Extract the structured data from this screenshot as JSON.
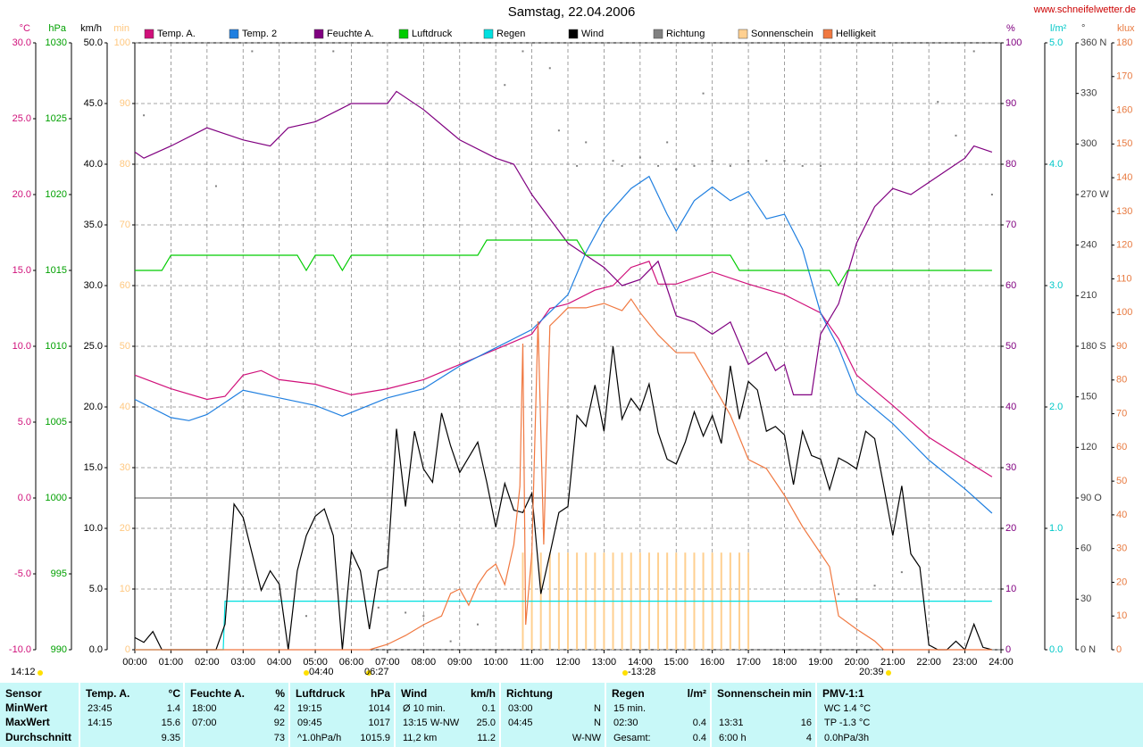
{
  "chart_data": {
    "type": "line",
    "title": "Samstag, 22.04.2006",
    "source": "www.schneifelwetter.de",
    "xlim": [
      0,
      24
    ],
    "xticks": [
      {
        "value": 0,
        "label": "00:00"
      },
      {
        "value": 1,
        "label": "01:00"
      },
      {
        "value": 2,
        "label": "02:00"
      },
      {
        "value": 3,
        "label": "03:00"
      },
      {
        "value": 4,
        "label": "04:00"
      },
      {
        "value": 5,
        "label": "05:00"
      },
      {
        "value": 6,
        "label": "06:00"
      },
      {
        "value": 7,
        "label": "07:00"
      },
      {
        "value": 8,
        "label": "08:00"
      },
      {
        "value": 9,
        "label": "09:00"
      },
      {
        "value": 10,
        "label": "10:00"
      },
      {
        "value": 11,
        "label": "11:00"
      },
      {
        "value": 12,
        "label": "12:00"
      },
      {
        "value": 13,
        "label": "13:00"
      },
      {
        "value": 14,
        "label": "14:00"
      },
      {
        "value": 15,
        "label": "15:00"
      },
      {
        "value": 16,
        "label": "16:00"
      },
      {
        "value": 17,
        "label": "17:00"
      },
      {
        "value": 18,
        "label": "18:00"
      },
      {
        "value": 19,
        "label": "19:00"
      },
      {
        "value": 20,
        "label": "20:00"
      },
      {
        "value": 21,
        "label": "21:00"
      },
      {
        "value": 22,
        "label": "22:00"
      },
      {
        "value": 23,
        "label": "23:00"
      },
      {
        "value": 24,
        "label": "24:00"
      }
    ],
    "ylabel": "°C",
    "ylim": [
      -10,
      30
    ],
    "yticks": [
      {
        "value": -10,
        "label": "-10.0"
      },
      {
        "value": -5,
        "label": "-5.0"
      },
      {
        "value": 0,
        "label": "0.0"
      },
      {
        "value": 5,
        "label": "5.0"
      },
      {
        "value": 10,
        "label": "10.0"
      },
      {
        "value": 15,
        "label": "15.0"
      },
      {
        "value": 20,
        "label": "20.0"
      },
      {
        "value": 25,
        "label": "25.0"
      },
      {
        "value": 30,
        "label": "30.0"
      }
    ],
    "y2label": "hPa",
    "y2lim": [
      990,
      1030
    ],
    "y2ticks": [
      990,
      995,
      1000,
      1005,
      1010,
      1015,
      1020,
      1025,
      1030
    ],
    "y3label": "km/h",
    "y3lim": [
      0,
      50
    ],
    "y3ticks": [
      {
        "value": 0,
        "label": "0.0"
      },
      {
        "value": 5,
        "label": "5.0"
      },
      {
        "value": 10,
        "label": "10.0"
      },
      {
        "value": 15,
        "label": "15.0"
      },
      {
        "value": 20,
        "label": "20.0"
      },
      {
        "value": 25,
        "label": "25.0"
      },
      {
        "value": 30,
        "label": "30.0"
      },
      {
        "value": 35,
        "label": "35.0"
      },
      {
        "value": 40,
        "label": "40.0"
      },
      {
        "value": 45,
        "label": "45.0"
      },
      {
        "value": 50,
        "label": "50.0"
      }
    ],
    "y4label": "min",
    "y4lim": [
      0,
      100
    ],
    "y4ticks": [
      0,
      10,
      20,
      30,
      40,
      50,
      60,
      70,
      80,
      90,
      100
    ],
    "y5label": "%",
    "y5lim": [
      0,
      100
    ],
    "y5ticks": [
      0,
      10,
      20,
      30,
      40,
      50,
      60,
      70,
      80,
      90,
      100
    ],
    "y6label": "l/m²",
    "y6lim": [
      0,
      5
    ],
    "y6ticks": [
      {
        "value": 0,
        "label": "0.0"
      },
      {
        "value": 1,
        "label": "1.0"
      },
      {
        "value": 2,
        "label": "2.0"
      },
      {
        "value": 3,
        "label": "3.0"
      },
      {
        "value": 4,
        "label": "4.0"
      },
      {
        "value": 5,
        "label": "5.0"
      }
    ],
    "y7label": "°",
    "y7lim": [
      0,
      360
    ],
    "y7ticks": [
      {
        "value": 0,
        "label": "0 N"
      },
      30,
      60,
      {
        "value": 90,
        "label": "90 O"
      },
      120,
      150,
      {
        "value": 180,
        "label": "180 S"
      },
      210,
      240,
      {
        "value": 270,
        "label": "270 W"
      },
      300,
      330,
      {
        "value": 360,
        "label": "360 N"
      }
    ],
    "y8label": "klux",
    "y8lim": [
      0,
      180
    ],
    "y8ticks": [
      0,
      10,
      20,
      30,
      40,
      50,
      60,
      70,
      80,
      90,
      100,
      110,
      120,
      130,
      140,
      150,
      160,
      170,
      180
    ],
    "axis_colors": {
      "y": "#d0107a",
      "y2": "#00a000",
      "y3": "#000000",
      "y4": "#ffc880",
      "y5": "#800080",
      "y6": "#00c8c8",
      "y7": "#404040",
      "y8": "#e87a40"
    },
    "grid": true,
    "series": [
      {
        "name": "Temp. A.",
        "color": "#d0107a",
        "type": "line",
        "axis": "y",
        "x": [
          0,
          1,
          2,
          2.5,
          3,
          3.5,
          4,
          5,
          6,
          7,
          8,
          9,
          10,
          11,
          11.5,
          12,
          12.75,
          13.25,
          13.75,
          14.25,
          14.5,
          15,
          16,
          17,
          18,
          19,
          19.5,
          20,
          21,
          22,
          23,
          23.75
        ],
        "values": [
          8.1,
          7.2,
          6.5,
          6.7,
          8.1,
          8.4,
          7.8,
          7.5,
          6.8,
          7.2,
          7.8,
          8.8,
          9.8,
          10.8,
          12.5,
          12.8,
          13.7,
          14.0,
          15.2,
          15.6,
          14.1,
          14.1,
          14.9,
          14.1,
          13.4,
          12.2,
          10.5,
          8.1,
          6.1,
          4.0,
          2.5,
          1.4
        ]
      },
      {
        "name": "Temp. 2",
        "color": "#1f7fe0",
        "type": "line",
        "axis": "y",
        "x": [
          0,
          1,
          1.5,
          2,
          3,
          4,
          5,
          5.75,
          7,
          8,
          9,
          10,
          11,
          12,
          12.5,
          13,
          13.75,
          14.25,
          14.75,
          15,
          15.5,
          16,
          16.5,
          17,
          17.5,
          18,
          18.5,
          19,
          19.5,
          20,
          21,
          22,
          23,
          23.75
        ],
        "values": [
          6.5,
          5.3,
          5.1,
          5.5,
          7.1,
          6.6,
          6.1,
          5.4,
          6.6,
          7.2,
          8.7,
          9.9,
          11.1,
          13.4,
          16.2,
          18.4,
          20.4,
          21.2,
          18.7,
          17.6,
          19.6,
          20.5,
          19.6,
          20.2,
          18.4,
          18.7,
          16.4,
          12.2,
          9.9,
          6.9,
          4.9,
          2.5,
          0.6,
          -1.0
        ]
      },
      {
        "name": "Feuchte A.",
        "color": "#800080",
        "type": "line",
        "axis": "y5",
        "x": [
          0,
          0.25,
          1,
          2,
          3,
          3.75,
          4.25,
          5,
          6,
          7,
          7.25,
          8,
          9,
          10,
          10.5,
          11,
          12,
          12.5,
          13,
          13.5,
          14,
          14.5,
          15,
          15.5,
          16,
          16.5,
          17,
          17.5,
          17.75,
          18,
          18.25,
          18.75,
          19,
          19.5,
          20,
          20.5,
          21,
          21.5,
          22,
          22.5,
          23,
          23.25,
          23.75
        ],
        "values": [
          82,
          81,
          83,
          86,
          84,
          83,
          86,
          87,
          90,
          90,
          92,
          89,
          84,
          81,
          80,
          75,
          67,
          65,
          63,
          60,
          61,
          64,
          55,
          54,
          52,
          54,
          47,
          49,
          46,
          47,
          42,
          42,
          52,
          57,
          67,
          73,
          76,
          75,
          77,
          79,
          81,
          83,
          82
        ]
      },
      {
        "name": "Luftdruck",
        "color": "#00cc00",
        "type": "line",
        "axis": "y2",
        "x": [
          0,
          0.75,
          1,
          4.5,
          4.75,
          5,
          5.5,
          5.75,
          6,
          9.5,
          9.75,
          12.25,
          12.5,
          16.5,
          16.75,
          19.25,
          19.5,
          19.75,
          23.75
        ],
        "values": [
          1015,
          1015,
          1016,
          1016,
          1015,
          1016,
          1016,
          1015,
          1016,
          1016,
          1017,
          1017,
          1016,
          1016,
          1015,
          1015,
          1014,
          1015,
          1015
        ]
      },
      {
        "name": "Regen",
        "color": "#00e0e0",
        "type": "line",
        "axis": "y6",
        "x": [
          0,
          2.45,
          2.5,
          23.75
        ],
        "values": [
          0,
          0,
          0.4,
          0.4
        ]
      },
      {
        "name": "Wind",
        "color": "#000000",
        "type": "line",
        "axis": "y3",
        "x": [
          0,
          0.25,
          0.5,
          0.75,
          2.25,
          2.5,
          2.75,
          3,
          3.5,
          3.75,
          4,
          4.25,
          4.5,
          4.75,
          5,
          5.25,
          5.5,
          5.75,
          6,
          6.25,
          6.5,
          6.75,
          7,
          7.25,
          7.5,
          7.75,
          8,
          8.25,
          8.5,
          8.75,
          9,
          9.5,
          9.75,
          10,
          10.25,
          10.5,
          10.75,
          11,
          11.25,
          11.5,
          11.75,
          12,
          12.25,
          12.5,
          12.75,
          13,
          13.25,
          13.5,
          13.75,
          14,
          14.25,
          14.5,
          14.75,
          15,
          15.25,
          15.5,
          15.75,
          16,
          16.25,
          16.5,
          16.75,
          17,
          17.25,
          17.5,
          17.75,
          18,
          18.25,
          18.5,
          18.75,
          19,
          19.25,
          19.5,
          19.75,
          20,
          20.25,
          20.5,
          20.75,
          21,
          21.25,
          21.5,
          21.75,
          22,
          22.25,
          22.5,
          22.75,
          23,
          23.25,
          23.5,
          23.75
        ],
        "values": [
          1.0,
          0.6,
          1.5,
          0,
          0,
          2.1,
          12.0,
          10.9,
          4.9,
          6.5,
          5.4,
          0,
          6.5,
          9.4,
          11.0,
          11.6,
          9.4,
          0,
          8.1,
          6.5,
          1.7,
          6.5,
          6.8,
          18.2,
          11.8,
          18.0,
          14.9,
          13.8,
          19.5,
          16.8,
          14.6,
          17.1,
          13.8,
          10.1,
          13.7,
          11.5,
          11.3,
          12.9,
          4.6,
          7.9,
          11.3,
          11.8,
          19.3,
          18.4,
          21.8,
          18.0,
          25.0,
          19.0,
          20.7,
          19.7,
          21.9,
          17.9,
          15.7,
          15.3,
          17.1,
          19.6,
          17.6,
          19.3,
          17.0,
          23.4,
          19.0,
          22.1,
          21.4,
          18.0,
          18.4,
          17.7,
          13.6,
          18.0,
          16.0,
          15.7,
          13.2,
          15.8,
          15.4,
          14.9,
          18.0,
          17.4,
          13.5,
          9.4,
          13.5,
          7.9,
          6.8,
          0.4,
          0,
          0,
          0.7,
          0,
          2.1,
          0.2,
          0
        ]
      },
      {
        "name": "Richtung",
        "color": "#808080",
        "type": "scatter",
        "axis": "y7",
        "x": [
          0.25,
          2.25,
          3.25,
          4.75,
          5.5,
          6.75,
          7.5,
          8,
          8.75,
          9.5,
          10.25,
          10.75,
          11.5,
          11.75,
          12.25,
          12.5,
          13.25,
          13.5,
          14,
          14.5,
          14.75,
          15,
          15.5,
          15.75,
          16,
          16.5,
          17,
          17.5,
          18,
          18.5,
          19,
          19.5,
          20,
          20.5,
          21.25,
          22.25,
          22.75,
          23.25,
          23.75
        ],
        "values": [
          317,
          275,
          355,
          20,
          355,
          25,
          22,
          20,
          5,
          15,
          335,
          355,
          345,
          308,
          287,
          301,
          290,
          287,
          292,
          287,
          301,
          285,
          287,
          330,
          290,
          287,
          290,
          290,
          290,
          287,
          287,
          33,
          30,
          38,
          46,
          325,
          305,
          355,
          270
        ]
      },
      {
        "name": "Sonnenschein",
        "color": "#ffd090",
        "type": "bar",
        "axis": "y4",
        "x": [
          10.75,
          11,
          11.25,
          11.5,
          11.75,
          12,
          12.25,
          12.5,
          12.75,
          13,
          13.25,
          13.5,
          13.75,
          14,
          14.25,
          14.5,
          14.75,
          15,
          15.25,
          15.5,
          15.75,
          16,
          16.25,
          16.5,
          16.75,
          17
        ],
        "values": [
          16,
          16,
          16,
          16,
          16,
          16,
          16,
          16,
          16,
          16,
          16,
          16,
          16,
          16,
          16,
          16,
          16,
          16,
          16,
          16,
          16,
          16,
          16,
          16,
          16,
          16
        ]
      },
      {
        "name": "Helligkeit",
        "color": "#f07840",
        "type": "line",
        "axis": "y8",
        "x": [
          0,
          6.5,
          7,
          7.5,
          8,
          8.5,
          8.75,
          9,
          9.25,
          9.5,
          9.75,
          10,
          10.25,
          10.5,
          10.67,
          10.75,
          10.83,
          11,
          11.17,
          11.33,
          11.5,
          11.75,
          12,
          12.5,
          13,
          13.5,
          13.75,
          14,
          14.5,
          15,
          15.5,
          16,
          16.5,
          17,
          17.5,
          18,
          18.5,
          19,
          19.25,
          19.5,
          20,
          20.5,
          20.75,
          23.75
        ],
        "values": [
          0,
          0,
          1.6,
          4.2,
          7.4,
          10,
          16.7,
          18,
          13.2,
          19.3,
          23.3,
          25.4,
          19.3,
          31.2,
          48.4,
          90.8,
          7.4,
          28.6,
          97.4,
          31.2,
          96.1,
          98.7,
          101.4,
          101.4,
          102.7,
          100.6,
          104,
          100,
          93.4,
          88.1,
          88.1,
          78.9,
          69.6,
          56.4,
          53.7,
          45.8,
          36.5,
          28.6,
          24.6,
          10,
          6.1,
          2.6,
          0,
          0
        ]
      }
    ],
    "annotations": [
      "14:12",
      "04:40",
      "06:27",
      "-13:28",
      "20:39"
    ]
  },
  "table": {
    "columns": [
      {
        "title": "Sensor",
        "rows": [
          {
            "left": "MinWert"
          },
          {
            "left": "MaxWert"
          },
          {
            "left": "Durchschnitt"
          }
        ]
      },
      {
        "title": "Temp. A.",
        "unit": "°C",
        "rows": [
          {
            "left": "23:45",
            "right": "1.4"
          },
          {
            "left": "14:15",
            "right": "15.6"
          },
          {
            "right": "9.35"
          }
        ]
      },
      {
        "title": "Feuchte A.",
        "unit": "%",
        "rows": [
          {
            "left": "18:00",
            "right": "42"
          },
          {
            "left": "07:00",
            "right": "92"
          },
          {
            "right": "73"
          }
        ]
      },
      {
        "title": "Luftdruck",
        "unit": "hPa",
        "rows": [
          {
            "left": "19:15",
            "right": "1014"
          },
          {
            "left": "09:45",
            "right": "1017"
          },
          {
            "left": "^1.0hPa/h",
            "right": "1015.9"
          }
        ]
      },
      {
        "title": "Wind",
        "unit": "km/h",
        "rows": [
          {
            "left": "Ø 10 min.",
            "right": "0.1"
          },
          {
            "left": "13:15",
            "mid": "W-NW",
            "right": "25.0"
          },
          {
            "left": "11,2 km",
            "right": "11.2"
          }
        ]
      },
      {
        "title": "Richtung",
        "rows": [
          {
            "left": "03:00",
            "right": "N"
          },
          {
            "left": "04:45",
            "right": "N"
          },
          {
            "right": "W-NW"
          }
        ]
      },
      {
        "title": "Regen",
        "unit": "l/m²",
        "rows": [
          {
            "left": "15 min."
          },
          {
            "left": "02:30",
            "right": "0.4"
          },
          {
            "left": "Gesamt:",
            "right": "0.4"
          }
        ]
      },
      {
        "title": "Sonnenschein",
        "unit": "min",
        "rows": [
          {},
          {
            "left": "13:31",
            "right": "16"
          },
          {
            "left": "6:00 h",
            "right": "4"
          }
        ]
      },
      {
        "title": "PMV-1:1",
        "rows": [
          {
            "left": "WC 1.4 °C"
          },
          {
            "left": "TP -1.3 °C"
          },
          {
            "left": "0.0hPa/3h"
          }
        ]
      }
    ]
  }
}
